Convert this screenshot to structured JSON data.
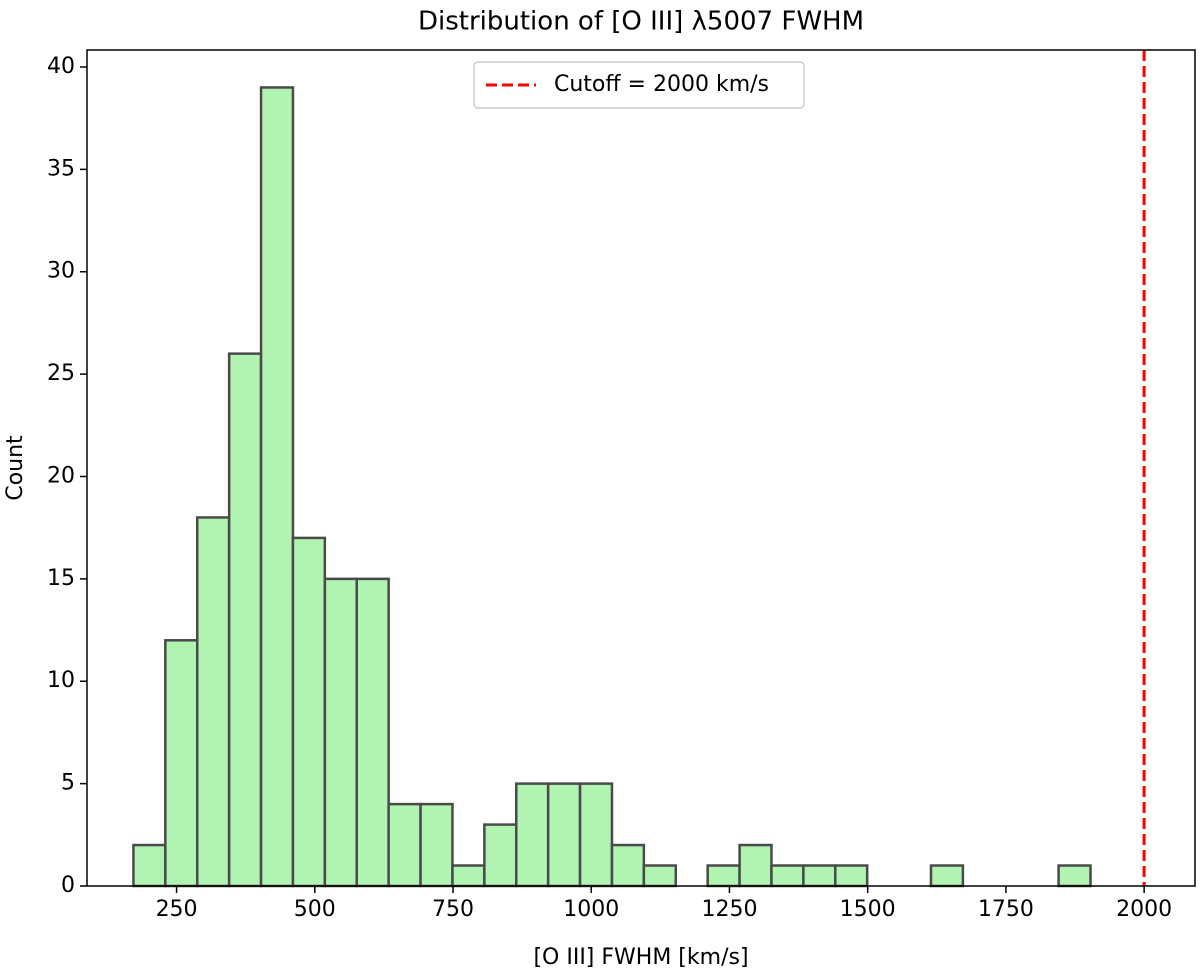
{
  "chart_data": {
    "type": "histogram",
    "title": "Distribution of [O III] λ5007 FWHM",
    "xlabel": "[O III] FWHM [km/s]",
    "ylabel": "Count",
    "bins": [
      172,
      229.7,
      287.4,
      345.1,
      402.8,
      460.5,
      518.2,
      575.9,
      633.6,
      691.3,
      749,
      806.7,
      864.4,
      922.1,
      979.8,
      1037.5,
      1095.2,
      1152.9,
      1210.6,
      1268.3,
      1326,
      1383.7,
      1441.4,
      1499.1,
      1556.8,
      1614.5,
      1672.2,
      1729.9,
      1787.6,
      1845.3,
      1903
    ],
    "counts": [
      2,
      12,
      18,
      26,
      39,
      17,
      15,
      15,
      4,
      4,
      1,
      3,
      5,
      5,
      5,
      2,
      1,
      0,
      1,
      2,
      1,
      1,
      1,
      0,
      0,
      1,
      0,
      0,
      0,
      1
    ],
    "color": "#b1f3b1",
    "edgecolor": "#4a4a4a",
    "xlim": [
      88,
      2092
    ],
    "xticks": [
      250,
      500,
      750,
      1000,
      1250,
      1500,
      1750,
      2000
    ],
    "ylim": [
      0,
      40.83
    ],
    "yticks": [
      0,
      5,
      10,
      15,
      20,
      25,
      30,
      35,
      40
    ],
    "vlines": [
      {
        "value": 2000,
        "label": "Cutoff = 2000 km/s",
        "color": "#ff0000"
      }
    ],
    "legend": "upper center",
    "grid": false
  }
}
